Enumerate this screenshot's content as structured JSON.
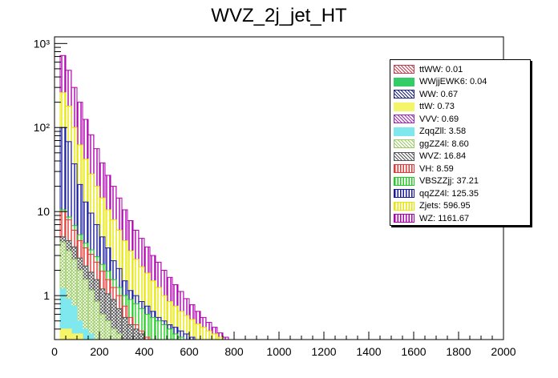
{
  "chart_data": {
    "type": "bar",
    "title": "WVZ_2j_jet_HT",
    "xlabel": "",
    "ylabel": "",
    "xlim": [
      0,
      2000
    ],
    "ylog": true,
    "ylim": [
      0.3,
      1200
    ],
    "xticks": [
      "0",
      "200",
      "400",
      "600",
      "800",
      "1000",
      "1200",
      "1400",
      "1600",
      "1800",
      "2000"
    ],
    "yticks": [
      {
        "value": 1,
        "label": "1"
      },
      {
        "value": 10,
        "label": "10"
      },
      {
        "value": 100,
        "label": "10²"
      },
      {
        "value": 1000,
        "label": "10³"
      }
    ],
    "stack_order": [
      "ttWW",
      "WWjjEWK6",
      "WW",
      "ttW",
      "VVV",
      "ZqqZll",
      "ggZZ4l",
      "WVZ",
      "VH",
      "VBSZZjj",
      "qqZZ4l",
      "Zjets",
      "WZ"
    ],
    "bins": {
      "start": 0,
      "width": 25,
      "count": 40
    },
    "stack_tops": {
      "ttW": [
        0,
        0.4,
        0.4,
        0.35,
        0.35,
        0.3,
        0.3,
        0.3,
        0,
        0,
        0,
        0,
        0,
        0,
        0,
        0,
        0,
        0,
        0,
        0,
        0,
        0,
        0,
        0,
        0,
        0,
        0,
        0,
        0,
        0,
        0,
        0,
        0,
        0,
        0,
        0,
        0,
        0,
        0,
        0
      ],
      "ZqqZll": [
        0,
        1.2,
        0.9,
        0.75,
        0.5,
        0.4,
        0.35,
        0.3,
        0,
        0,
        0,
        0,
        0,
        0,
        0,
        0,
        0,
        0,
        0,
        0,
        0,
        0,
        0,
        0,
        0,
        0,
        0,
        0,
        0,
        0,
        0,
        0,
        0,
        0,
        0,
        0,
        0,
        0,
        0,
        0
      ],
      "ggZZ4l": [
        0,
        4.3,
        3.4,
        2.7,
        2.0,
        1.55,
        1.15,
        0.85,
        0.6,
        0.5,
        0.4,
        0.35,
        0.3,
        0,
        0,
        0,
        0,
        0,
        0,
        0,
        0,
        0,
        0,
        0,
        0,
        0,
        0,
        0,
        0,
        0,
        0,
        0,
        0,
        0,
        0,
        0,
        0,
        0,
        0,
        0
      ],
      "WVZ": [
        0,
        5,
        4.5,
        3.8,
        2.8,
        2.25,
        1.9,
        1.55,
        1.2,
        1.05,
        0.9,
        0.7,
        0.55,
        0.45,
        0.4,
        0.35,
        0.3,
        0,
        0,
        0,
        0,
        0,
        0,
        0,
        0,
        0,
        0,
        0,
        0,
        0,
        0,
        0,
        0,
        0,
        0,
        0,
        0,
        0,
        0,
        0
      ],
      "VH": [
        0,
        10,
        8,
        6,
        4.5,
        3.7,
        3.1,
        2.5,
        1.95,
        1.55,
        1.25,
        1.0,
        0.75,
        0.55,
        0.45,
        0.38,
        0.32,
        0,
        0,
        0,
        0,
        0,
        0,
        0,
        0,
        0,
        0,
        0,
        0,
        0,
        0,
        0,
        0,
        0,
        0,
        0,
        0,
        0,
        0,
        0
      ],
      "VBSZZjj": [
        0,
        10.5,
        8.6,
        6.8,
        5.3,
        4.2,
        3.5,
        2.9,
        2.35,
        1.95,
        1.55,
        1.25,
        1.0,
        0.9,
        0.8,
        0.7,
        0.6,
        0.55,
        0.5,
        0.45,
        0.4,
        0.35,
        0.32,
        0.3,
        0,
        0,
        0,
        0,
        0,
        0,
        0,
        0,
        0,
        0,
        0,
        0,
        0,
        0,
        0,
        0
      ],
      "qqZZ4l": [
        0,
        100,
        68,
        37,
        21,
        13,
        9.6,
        7,
        5,
        3.7,
        2.6,
        2.1,
        1.5,
        1.15,
        1.0,
        0.85,
        0.75,
        0.65,
        0.55,
        0.5,
        0.45,
        0.42,
        0.38,
        0.35,
        0.32,
        0.3,
        0,
        0,
        0,
        0,
        0,
        0,
        0,
        0,
        0,
        0,
        0,
        0,
        0,
        0
      ],
      "Zjets": [
        0,
        260,
        180,
        100,
        62,
        42,
        28,
        20,
        14.5,
        10.5,
        8,
        6,
        4.5,
        3.4,
        2.7,
        2.2,
        1.85,
        1.5,
        1.25,
        1.0,
        0.85,
        0.75,
        0.65,
        0.58,
        0.52,
        0.46,
        0.42,
        0.38,
        0.35,
        0.32,
        0.3,
        0,
        0,
        0,
        0,
        0,
        0,
        0,
        0,
        0
      ],
      "WZ": [
        0,
        720,
        480,
        300,
        200,
        125,
        82,
        56,
        38,
        27,
        20,
        14.5,
        10.5,
        7.8,
        6,
        4.8,
        3.8,
        3.0,
        2.5,
        2.0,
        1.65,
        1.35,
        1.12,
        0.92,
        0.78,
        0.65,
        0.55,
        0.48,
        0.42,
        0.36,
        0.32,
        0,
        0,
        0,
        0,
        0,
        0,
        0,
        0,
        0
      ]
    }
  },
  "legend": [
    {
      "key": "ttWW",
      "label": "ttWW: 0.01",
      "color": "#c04050",
      "pattern": "cross"
    },
    {
      "key": "WWjjEWK6",
      "label": "WWjjEWK6: 0.04",
      "color": "#33cc66",
      "pattern": "solid"
    },
    {
      "key": "WW",
      "label": "WW: 0.67",
      "color": "#1a237e",
      "pattern": "cross"
    },
    {
      "key": "ttW",
      "label": "ttW: 0.73",
      "color": "#f5f56a",
      "pattern": "solid"
    },
    {
      "key": "VVV",
      "label": "VVV: 0.69",
      "color": "#9c27b0",
      "pattern": "cross"
    },
    {
      "key": "ZqqZll",
      "label": "ZqqZll: 3.58",
      "color": "#7ee8ee",
      "pattern": "solid"
    },
    {
      "key": "ggZZ4l",
      "label": "ggZZ4l: 8.60",
      "color": "#9ccc65",
      "pattern": "cross"
    },
    {
      "key": "WVZ",
      "label": "WVZ: 16.84",
      "color": "#555555",
      "pattern": "cross"
    },
    {
      "key": "VH",
      "label": "VH: 8.59",
      "color": "#e53935",
      "pattern": "vlines"
    },
    {
      "key": "VBSZZjj",
      "label": "VBSZZjj: 37.21",
      "color": "#22cc22",
      "pattern": "vlines"
    },
    {
      "key": "qqZZ4l",
      "label": "qqZZ4l: 125.35",
      "color": "#1a1aa0",
      "pattern": "vlines"
    },
    {
      "key": "Zjets",
      "label": "Zjets: 596.95",
      "color": "#e6e600",
      "pattern": "vlines"
    },
    {
      "key": "WZ",
      "label": "WZ: 1161.67",
      "color": "#b000b0",
      "pattern": "vlines"
    }
  ]
}
